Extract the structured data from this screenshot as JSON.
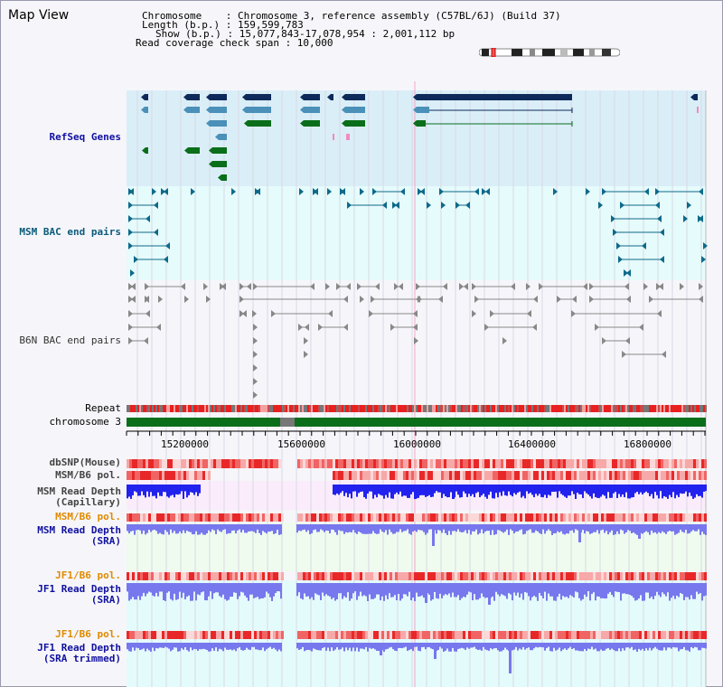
{
  "title": "Map View",
  "header": {
    "chromosome_label": "Chromosome    : Chromosome 3, reference assembly (C57BL/6J) (Build 37)",
    "length_label": "Length (b.p.) : 159,599,783",
    "show_label": "Show (b.p.) : 15,077,843-17,078,954 : 2,001,112 bp",
    "read_span_label": "Read coverage check span : 10,000"
  },
  "tracks": {
    "refseq": "RefSeq Genes",
    "msm_bac": "MSM BAC end pairs",
    "b6n_bac": "B6N BAC end pairs",
    "repeat": "Repeat",
    "chrom": "chromosome 3",
    "dbsnp": "dbSNP(Mouse)",
    "msm_b6_pol_1": "MSM/B6 pol.",
    "msm_depth_cap_1": "MSM Read Depth",
    "msm_depth_cap_2": "(Capillary)",
    "msm_b6_pol_2": "MSM/B6 pol.",
    "msm_depth_sra_1": "MSM Read Depth",
    "msm_depth_sra_2": "(SRA)",
    "jf1_b6_pol_1": "JF1/B6 pol.",
    "jf1_depth_1": "JF1 Read Depth",
    "jf1_depth_2": "(SRA)",
    "jf1_b6_pol_2": "JF1/B6 pol.",
    "jf1_trim_1": "JF1 Read Depth",
    "jf1_trim_2": "(SRA trimmed)"
  },
  "axis": {
    "ticks": [
      "15200000",
      "15600000",
      "16000000",
      "16400000",
      "16800000"
    ]
  },
  "colors": {
    "refseq_bg": "#daeef8",
    "msm_bac_bg": "#e4fbfb",
    "gene_navy": "#0d2a5a",
    "gene_steel": "#4a90b8",
    "gene_green": "#0a6e1a",
    "chrom_green": "#0a6e1a",
    "depth_blue": "#2222ee",
    "sra_blue": "#7777ee"
  }
}
